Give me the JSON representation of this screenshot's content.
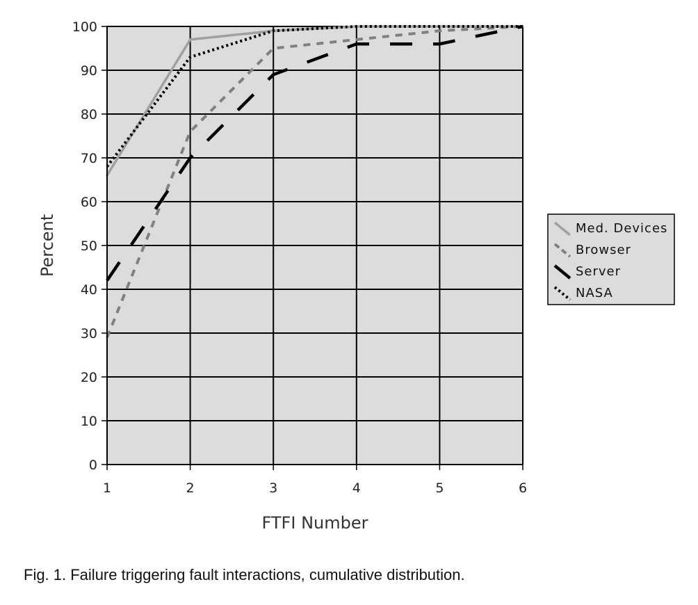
{
  "chart_data": {
    "type": "line",
    "title": "",
    "xlabel": "FTFI Number",
    "ylabel": "Percent",
    "x": [
      1,
      2,
      3,
      4,
      5,
      6
    ],
    "xlim": [
      1,
      6
    ],
    "ylim": [
      0,
      100
    ],
    "x_ticks": [
      "1",
      "2",
      "3",
      "4",
      "5",
      "6"
    ],
    "y_ticks": [
      "0",
      "10",
      "20",
      "30",
      "40",
      "50",
      "60",
      "70",
      "80",
      "90",
      "100"
    ],
    "grid": true,
    "legend_position": "right",
    "series": [
      {
        "name": "Med. Devices",
        "values": [
          66,
          97,
          99,
          100,
          100,
          100
        ],
        "color": "#a0a0a0",
        "style": "solid"
      },
      {
        "name": "Browser",
        "values": [
          29,
          76,
          95,
          97,
          99,
          100
        ],
        "color": "#808080",
        "style": "dashed"
      },
      {
        "name": "Server",
        "values": [
          42,
          70,
          89,
          96,
          96,
          100
        ],
        "color": "#000000",
        "style": "long-dash"
      },
      {
        "name": "NASA",
        "values": [
          68,
          93,
          99,
          100,
          100,
          100
        ],
        "color": "#000000",
        "style": "dotted"
      }
    ]
  },
  "caption": "Fig. 1. Failure triggering fault interactions, cumulative distribution."
}
